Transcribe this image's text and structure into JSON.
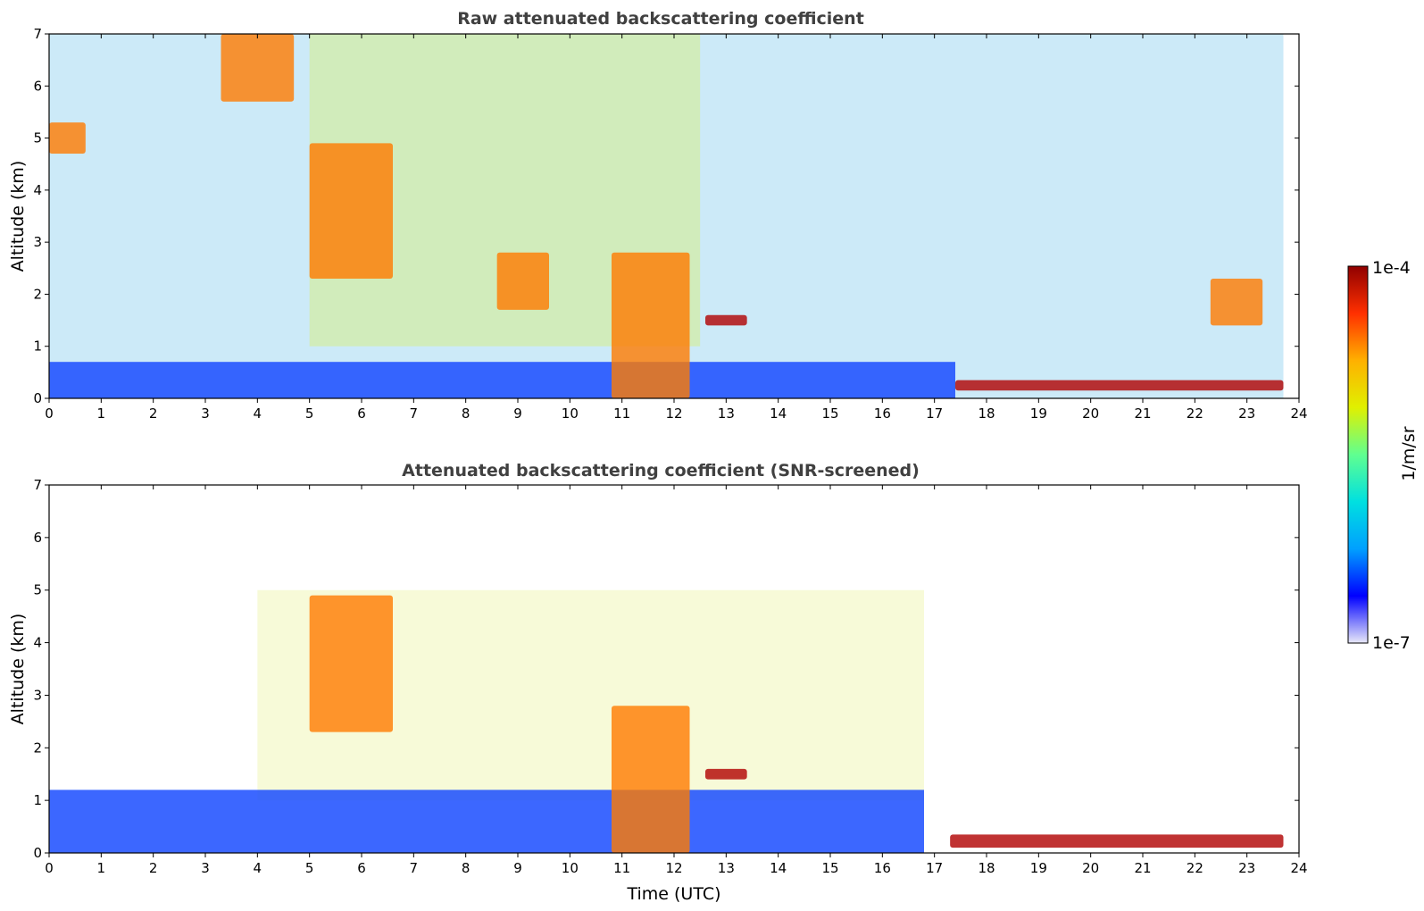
{
  "chart_data": [
    {
      "type": "heatmap",
      "title": "Raw attenuated backscattering coefficient",
      "xlabel": "",
      "ylabel": "Altitude (km)",
      "xlim": [
        0,
        24
      ],
      "ylim": [
        0,
        7
      ],
      "xticks": [
        "0",
        "1",
        "2",
        "3",
        "4",
        "5",
        "6",
        "7",
        "8",
        "9",
        "10",
        "11",
        "12",
        "13",
        "14",
        "15",
        "16",
        "17",
        "18",
        "19",
        "20",
        "21",
        "22",
        "23",
        "24"
      ],
      "yticks": [
        "0",
        "1",
        "2",
        "3",
        "4",
        "5",
        "6",
        "7"
      ],
      "data_end_hour": 23.7,
      "features": [
        {
          "desc": "boundary layer",
          "t": [
            0,
            17.4
          ],
          "alt_km": [
            0,
            0.7
          ],
          "level": "low"
        },
        {
          "desc": "low cloud",
          "t": [
            17.4,
            23.7
          ],
          "alt_km": [
            0.15,
            0.35
          ],
          "level": "max"
        },
        {
          "desc": "mid-level cloud",
          "t": [
            0,
            0.7
          ],
          "alt_km": [
            4.7,
            5.3
          ],
          "level": "high"
        },
        {
          "desc": "mid-level cloud",
          "t": [
            3.3,
            4.7
          ],
          "alt_km": [
            5.7,
            7
          ],
          "level": "high"
        },
        {
          "desc": "mid-level cloud",
          "t": [
            5,
            6.6
          ],
          "alt_km": [
            2.3,
            4.9
          ],
          "level": "high"
        },
        {
          "desc": "mid-level cloud",
          "t": [
            8.6,
            9.6
          ],
          "alt_km": [
            1.7,
            2.8
          ],
          "level": "high"
        },
        {
          "desc": "convective column",
          "t": [
            10.8,
            12.3
          ],
          "alt_km": [
            0,
            2.8
          ],
          "level": "high"
        },
        {
          "desc": "thin layer",
          "t": [
            12.6,
            13.4
          ],
          "alt_km": [
            1.4,
            1.6
          ],
          "level": "max"
        },
        {
          "desc": "thin layer",
          "t": [
            22.3,
            23.3
          ],
          "alt_km": [
            1.4,
            2.3
          ],
          "level": "high"
        }
      ]
    },
    {
      "type": "heatmap",
      "title": "Attenuated backscattering coefficient (SNR-screened)",
      "xlabel": "Time (UTC)",
      "ylabel": "Altitude (km)",
      "xlim": [
        0,
        24
      ],
      "ylim": [
        0,
        7
      ],
      "xticks": [
        "0",
        "1",
        "2",
        "3",
        "4",
        "5",
        "6",
        "7",
        "8",
        "9",
        "10",
        "11",
        "12",
        "13",
        "14",
        "15",
        "16",
        "17",
        "18",
        "19",
        "20",
        "21",
        "22",
        "23",
        "24"
      ],
      "yticks": [
        "0",
        "1",
        "2",
        "3",
        "4",
        "5",
        "6",
        "7"
      ],
      "data_end_hour": 23.7,
      "features": [
        {
          "desc": "boundary layer",
          "t": [
            0,
            16.8
          ],
          "alt_km": [
            0,
            1.2
          ],
          "level": "low"
        },
        {
          "desc": "low cloud",
          "t": [
            17.3,
            23.7
          ],
          "alt_km": [
            0.1,
            0.35
          ],
          "level": "max"
        },
        {
          "desc": "mid-level cloud",
          "t": [
            5,
            6.6
          ],
          "alt_km": [
            2.3,
            4.9
          ],
          "level": "high"
        },
        {
          "desc": "convective column",
          "t": [
            10.8,
            12.3
          ],
          "alt_km": [
            0,
            2.8
          ],
          "level": "high"
        },
        {
          "desc": "thin layer",
          "t": [
            12.6,
            13.4
          ],
          "alt_km": [
            1.4,
            1.6
          ],
          "level": "max"
        }
      ]
    }
  ],
  "colorbar": {
    "label": "1/m/sr",
    "min_label": "1e-7",
    "max_label": "1e-4",
    "colormap": "jet",
    "colors": [
      "#e8e8f8",
      "#0000ff",
      "#00a0ff",
      "#00e0e0",
      "#60ff90",
      "#e0f000",
      "#ffb000",
      "#ff3000",
      "#900000"
    ]
  }
}
